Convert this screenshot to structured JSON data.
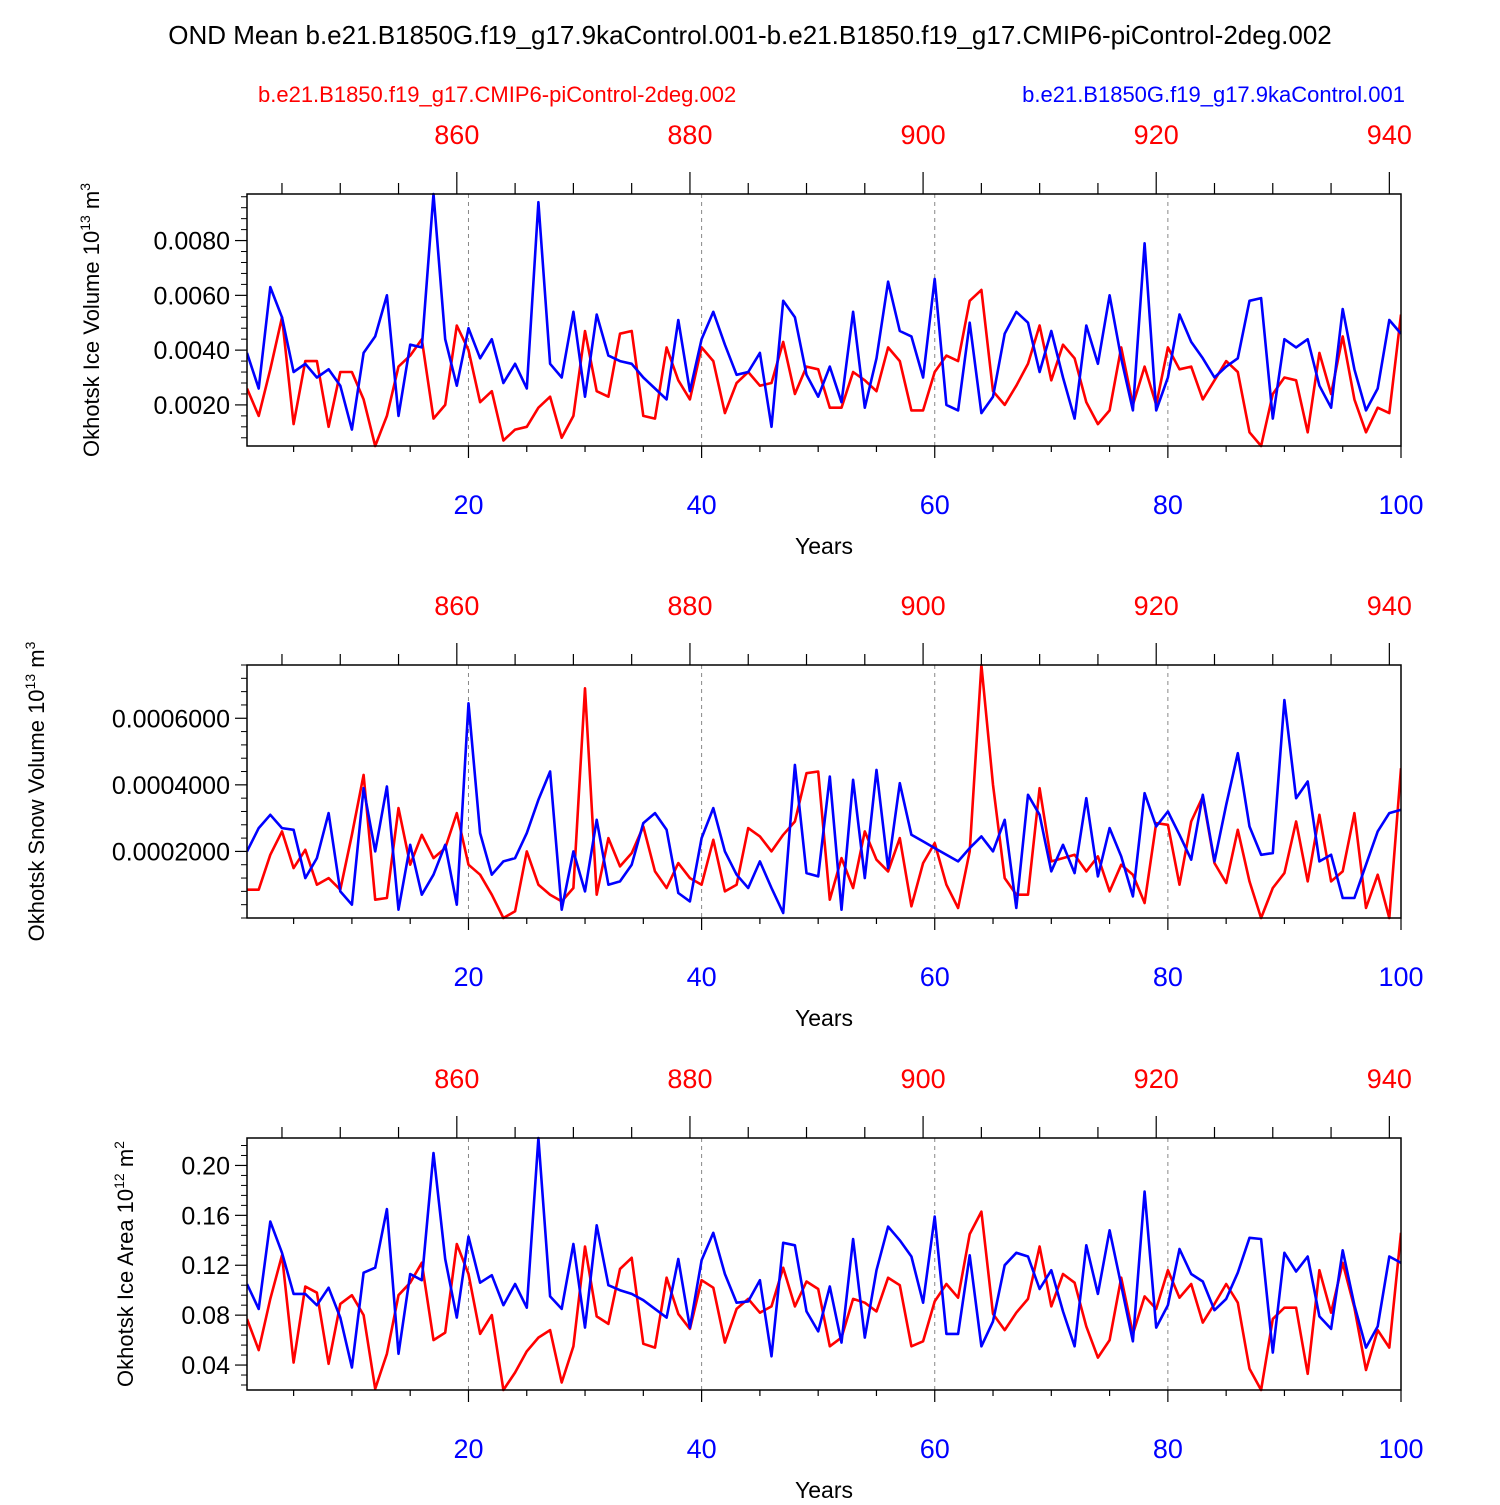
{
  "main_title": "OND Mean b.e21.B1850G.f19_g17.9kaControl.001-b.e21.B1850.f19_g17.CMIP6-piControl-2deg.002",
  "legend": {
    "red_label": "b.e21.B1850.f19_g17.CMIP6-piControl-2deg.002",
    "blue_label": "b.e21.B1850G.f19_g17.9kaControl.001",
    "red_color": "#ff0000",
    "blue_color": "#0000ff"
  },
  "chart_data": [
    {
      "type": "line",
      "title": "",
      "ylabel": "Okhotsk Ice Volume 10^13 m^3",
      "ylabel_main": "Okhotsk Ice Volume 10",
      "ylabel_exp1": "13",
      "ylabel_mid": " m",
      "ylabel_exp2": "3",
      "xlabel": "Years",
      "xlim": [
        1,
        100
      ],
      "top_xlim": [
        842,
        941
      ],
      "ylim": [
        0.0005,
        0.0097
      ],
      "yticks": [
        0.002,
        0.004,
        0.006,
        0.008
      ],
      "ytick_labels": [
        "0.0020",
        "0.0040",
        "0.0060",
        "0.0080"
      ],
      "xticks": [
        20,
        40,
        60,
        80,
        100
      ],
      "xtick_labels": [
        "20",
        "40",
        "60",
        "80",
        "100"
      ],
      "top_xticks": [
        860,
        880,
        900,
        920,
        940
      ],
      "top_xtick_labels": [
        "860",
        "880",
        "900",
        "920",
        "940"
      ],
      "series": [
        {
          "name": "b.e21.B1850G.f19_g17.9kaControl.001",
          "color": "#0000ff",
          "values": [
            0.0039,
            0.0026,
            0.0063,
            0.0052,
            0.0032,
            0.0035,
            0.003,
            0.0033,
            0.0027,
            0.0011,
            0.0039,
            0.0045,
            0.006,
            0.0016,
            0.0042,
            0.0041,
            0.0097,
            0.0044,
            0.0027,
            0.0048,
            0.0037,
            0.0044,
            0.0028,
            0.0035,
            0.0026,
            0.0094,
            0.0035,
            0.003,
            0.0054,
            0.0023,
            0.0053,
            0.0038,
            0.0036,
            0.0035,
            0.003,
            0.0026,
            0.0022,
            0.0051,
            0.0025,
            0.0044,
            0.0054,
            0.0042,
            0.0031,
            0.0032,
            0.0039,
            0.0012,
            0.0058,
            0.0052,
            0.0031,
            0.0023,
            0.0034,
            0.0021,
            0.0054,
            0.0019,
            0.0037,
            0.0065,
            0.0047,
            0.0045,
            0.003,
            0.0066,
            0.002,
            0.0018,
            0.005,
            0.0017,
            0.0023,
            0.0046,
            0.0054,
            0.005,
            0.0032,
            0.0047,
            0.003,
            0.0015,
            0.0049,
            0.0035,
            0.006,
            0.0037,
            0.0018,
            0.0079,
            0.0018,
            0.003,
            0.0053,
            0.0043,
            0.0037,
            0.003,
            0.0034,
            0.0037,
            0.0058,
            0.0059,
            0.0015,
            0.0044,
            0.0041,
            0.0044,
            0.0027,
            0.0019,
            0.0055,
            0.0033,
            0.0018,
            0.0026,
            0.0051,
            0.0046
          ]
        },
        {
          "name": "b.e21.B1850.f19_g17.CMIP6-piControl-2deg.002",
          "color": "#ff0000",
          "values": [
            0.0026,
            0.0016,
            0.0033,
            0.0052,
            0.0013,
            0.0036,
            0.0036,
            0.0012,
            0.0032,
            0.0032,
            0.0022,
            0.0005,
            0.0016,
            0.0034,
            0.0038,
            0.0044,
            0.0015,
            0.002,
            0.0049,
            0.004,
            0.0021,
            0.0025,
            0.0007,
            0.0011,
            0.0012,
            0.0019,
            0.0023,
            0.0008,
            0.0016,
            0.0047,
            0.0025,
            0.0023,
            0.0046,
            0.0047,
            0.0016,
            0.0015,
            0.0041,
            0.0029,
            0.0022,
            0.0041,
            0.0036,
            0.0017,
            0.0028,
            0.0032,
            0.0027,
            0.0028,
            0.0043,
            0.0024,
            0.0034,
            0.0033,
            0.0019,
            0.0019,
            0.0032,
            0.0029,
            0.0025,
            0.0041,
            0.0036,
            0.0018,
            0.0018,
            0.0032,
            0.0038,
            0.0036,
            0.0058,
            0.0062,
            0.0025,
            0.002,
            0.0027,
            0.0035,
            0.0049,
            0.0029,
            0.0042,
            0.0037,
            0.0021,
            0.0013,
            0.0018,
            0.0041,
            0.002,
            0.0034,
            0.002,
            0.0041,
            0.0033,
            0.0034,
            0.0022,
            0.0029,
            0.0036,
            0.0032,
            0.001,
            0.0005,
            0.0024,
            0.003,
            0.0029,
            0.001,
            0.0039,
            0.0024,
            0.0045,
            0.0022,
            0.001,
            0.0019,
            0.0017,
            0.0053
          ]
        }
      ]
    },
    {
      "type": "line",
      "title": "",
      "ylabel": "Okhotsk Snow Volume 10^13 m^3",
      "ylabel_main": "Okhotsk Snow Volume 10",
      "ylabel_exp1": "13",
      "ylabel_mid": " m",
      "ylabel_exp2": "3",
      "xlabel": "Years",
      "xlim": [
        1,
        100
      ],
      "top_xlim": [
        842,
        941
      ],
      "ylim": [
        0.0,
        0.00076
      ],
      "yticks": [
        0.0002,
        0.0004,
        0.0006
      ],
      "ytick_labels": [
        "0.0002000",
        "0.0004000",
        "0.0006000"
      ],
      "xticks": [
        20,
        40,
        60,
        80,
        100
      ],
      "xtick_labels": [
        "20",
        "40",
        "60",
        "80",
        "100"
      ],
      "top_xticks": [
        860,
        880,
        900,
        920,
        940
      ],
      "top_xtick_labels": [
        "860",
        "880",
        "900",
        "920",
        "940"
      ],
      "series": [
        {
          "name": "b.e21.B1850G.f19_g17.9kaControl.001",
          "color": "#0000ff",
          "values": [
            0.0002,
            0.00027,
            0.00031,
            0.00027,
            0.000265,
            0.00012,
            0.00018,
            0.000315,
            8e-05,
            4e-05,
            0.00039,
            0.0002,
            0.000395,
            2.5e-05,
            0.00022,
            7e-05,
            0.00013,
            0.00022,
            4e-05,
            0.000645,
            0.000255,
            0.00013,
            0.00017,
            0.00018,
            0.000255,
            0.000355,
            0.00044,
            2.5e-05,
            0.0002,
            8e-05,
            0.000295,
            0.0001,
            0.00011,
            0.00016,
            0.000285,
            0.000315,
            0.000265,
            7.5e-05,
            5e-05,
            0.00024,
            0.00033,
            0.0002,
            0.00013,
            9e-05,
            0.00017,
            9e-05,
            1.5e-05,
            0.00046,
            0.000135,
            0.000125,
            0.000425,
            2.5e-05,
            0.000415,
            0.00012,
            0.000445,
            0.00015,
            0.000405,
            0.00025,
            0.00023,
            0.00021,
            0.00019,
            0.00017,
            0.00021,
            0.000245,
            0.0002,
            0.000295,
            3e-05,
            0.00037,
            0.00031,
            0.00014,
            0.00022,
            0.000135,
            0.00036,
            0.000125,
            0.00027,
            0.000185,
            6.5e-05,
            0.000375,
            0.000275,
            0.00032,
            0.00025,
            0.000175,
            0.00037,
            0.00017,
            0.00034,
            0.000495,
            0.000275,
            0.00019,
            0.000195,
            0.000655,
            0.00036,
            0.00041,
            0.00017,
            0.00019,
            6e-05,
            6e-05,
            0.00016,
            0.00026,
            0.000315,
            0.000325
          ]
        },
        {
          "name": "b.e21.B1850.f19_g17.CMIP6-piControl-2deg.002",
          "color": "#ff0000",
          "values": [
            8.5e-05,
            8.5e-05,
            0.00019,
            0.00026,
            0.00015,
            0.000205,
            0.0001,
            0.00012,
            8.5e-05,
            0.00025,
            0.00043,
            5.5e-05,
            6e-05,
            0.00033,
            0.00016,
            0.00025,
            0.00018,
            0.00021,
            0.000315,
            0.00016,
            0.00013,
            7e-05,
            0.0,
            2e-05,
            0.0002,
            0.0001,
            7e-05,
            5e-05,
            9e-05,
            0.00069,
            7e-05,
            0.00024,
            0.000155,
            0.000195,
            0.000275,
            0.00014,
            9e-05,
            0.000165,
            0.00012,
            0.0001,
            0.000235,
            8e-05,
            0.0001,
            0.00027,
            0.000245,
            0.0002,
            0.00025,
            0.00029,
            0.000435,
            0.00044,
            5.5e-05,
            0.00018,
            9e-05,
            0.00026,
            0.000175,
            0.00014,
            0.00024,
            3.5e-05,
            0.000165,
            0.000225,
            0.0001,
            3e-05,
            0.0002,
            0.00076,
            0.0004,
            0.00012,
            7e-05,
            7e-05,
            0.00039,
            0.00017,
            0.00018,
            0.00019,
            0.00014,
            0.000185,
            8e-05,
            0.00016,
            0.00013,
            4.5e-05,
            0.000285,
            0.00028,
            0.0001,
            0.00029,
            0.000365,
            0.000165,
            0.000105,
            0.000265,
            0.00011,
            0.0,
            9e-05,
            0.000135,
            0.00029,
            0.00011,
            0.00031,
            0.00011,
            0.00014,
            0.000315,
            3e-05,
            0.00013,
            0.0,
            0.00045
          ]
        }
      ]
    },
    {
      "type": "line",
      "title": "",
      "ylabel": "Okhotsk Ice Area 10^12 m^2",
      "ylabel_main": "Okhotsk Ice Area 10",
      "ylabel_exp1": "12",
      "ylabel_mid": " m",
      "ylabel_exp2": "2",
      "xlabel": "Years",
      "xlim": [
        1,
        100
      ],
      "top_xlim": [
        842,
        941
      ],
      "ylim": [
        0.02,
        0.222
      ],
      "yticks": [
        0.04,
        0.08,
        0.12,
        0.16,
        0.2
      ],
      "ytick_labels": [
        "0.04",
        "0.08",
        "0.12",
        "0.16",
        "0.20"
      ],
      "xticks": [
        20,
        40,
        60,
        80,
        100
      ],
      "xtick_labels": [
        "20",
        "40",
        "60",
        "80",
        "100"
      ],
      "top_xticks": [
        860,
        880,
        900,
        920,
        940
      ],
      "top_xtick_labels": [
        "860",
        "880",
        "900",
        "920",
        "940"
      ],
      "series": [
        {
          "name": "b.e21.B1850G.f19_g17.9kaControl.001",
          "color": "#0000ff",
          "values": [
            0.105,
            0.085,
            0.155,
            0.13,
            0.097,
            0.097,
            0.088,
            0.102,
            0.078,
            0.038,
            0.114,
            0.118,
            0.165,
            0.049,
            0.113,
            0.108,
            0.21,
            0.125,
            0.078,
            0.143,
            0.106,
            0.112,
            0.088,
            0.105,
            0.086,
            0.222,
            0.095,
            0.085,
            0.137,
            0.07,
            0.152,
            0.104,
            0.1,
            0.097,
            0.092,
            0.085,
            0.078,
            0.125,
            0.07,
            0.124,
            0.146,
            0.113,
            0.09,
            0.091,
            0.108,
            0.047,
            0.138,
            0.136,
            0.083,
            0.067,
            0.103,
            0.058,
            0.141,
            0.062,
            0.116,
            0.151,
            0.14,
            0.127,
            0.09,
            0.159,
            0.065,
            0.065,
            0.128,
            0.055,
            0.075,
            0.12,
            0.13,
            0.127,
            0.101,
            0.116,
            0.083,
            0.055,
            0.136,
            0.097,
            0.148,
            0.104,
            0.059,
            0.179,
            0.07,
            0.088,
            0.133,
            0.113,
            0.107,
            0.084,
            0.093,
            0.114,
            0.142,
            0.141,
            0.05,
            0.13,
            0.115,
            0.127,
            0.079,
            0.069,
            0.132,
            0.088,
            0.054,
            0.071,
            0.127,
            0.122
          ]
        },
        {
          "name": "b.e21.B1850.f19_g17.CMIP6-piControl-2deg.002",
          "color": "#ff0000",
          "values": [
            0.077,
            0.052,
            0.093,
            0.128,
            0.042,
            0.103,
            0.098,
            0.041,
            0.089,
            0.096,
            0.08,
            0.021,
            0.049,
            0.096,
            0.106,
            0.122,
            0.06,
            0.066,
            0.137,
            0.113,
            0.065,
            0.08,
            0.02,
            0.034,
            0.051,
            0.062,
            0.068,
            0.026,
            0.055,
            0.135,
            0.079,
            0.073,
            0.117,
            0.126,
            0.057,
            0.054,
            0.11,
            0.081,
            0.069,
            0.108,
            0.102,
            0.058,
            0.085,
            0.093,
            0.082,
            0.087,
            0.118,
            0.087,
            0.107,
            0.101,
            0.055,
            0.062,
            0.093,
            0.09,
            0.083,
            0.11,
            0.104,
            0.055,
            0.059,
            0.091,
            0.105,
            0.094,
            0.145,
            0.163,
            0.081,
            0.068,
            0.082,
            0.093,
            0.135,
            0.087,
            0.113,
            0.106,
            0.071,
            0.046,
            0.06,
            0.11,
            0.065,
            0.095,
            0.085,
            0.116,
            0.094,
            0.105,
            0.074,
            0.089,
            0.105,
            0.09,
            0.037,
            0.02,
            0.077,
            0.086,
            0.086,
            0.033,
            0.116,
            0.082,
            0.122,
            0.086,
            0.036,
            0.068,
            0.054,
            0.146
          ]
        }
      ]
    }
  ]
}
